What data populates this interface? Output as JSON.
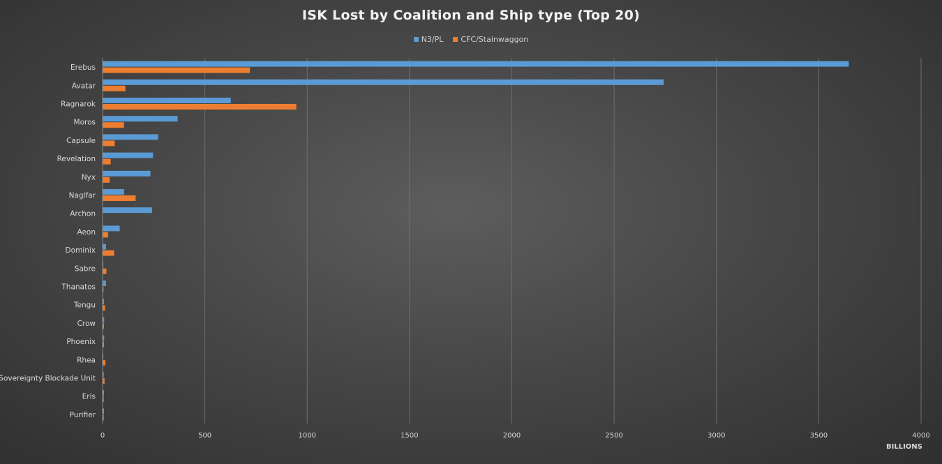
{
  "chart_data": {
    "type": "bar",
    "orientation": "horizontal",
    "title": "ISK Lost by Coalition and Ship type (Top 20)",
    "xlabel": "BILLIONS",
    "xlim": [
      0,
      4000
    ],
    "xticks": [
      0,
      500,
      1000,
      1500,
      2000,
      2500,
      3000,
      3500,
      4000
    ],
    "grid": true,
    "legend_position": "top",
    "categories": [
      "Erebus",
      "Avatar",
      "Ragnarok",
      "Moros",
      "Capsule",
      "Revelation",
      "Nyx",
      "Naglfar",
      "Archon",
      "Aeon",
      "Dominix",
      "Sabre",
      "Thanatos",
      "Tengu",
      "Crow",
      "Phoenix",
      "Rhea",
      "Sovereignty Blockade Unit",
      "Eris",
      "Purifier"
    ],
    "series": [
      {
        "name": "N3/PL",
        "color": "#5b9bd5",
        "values": [
          3645,
          2740,
          625,
          365,
          270,
          245,
          232,
          103,
          240,
          82,
          15,
          2,
          15,
          5,
          6,
          6,
          2,
          4,
          5,
          5
        ]
      },
      {
        "name": "CFC/Stainwaggon",
        "color": "#ed7d31",
        "values": [
          718,
          110,
          945,
          103,
          58,
          38,
          33,
          160,
          0,
          25,
          55,
          17,
          3,
          10,
          5,
          5,
          12,
          8,
          4,
          4
        ]
      }
    ]
  }
}
